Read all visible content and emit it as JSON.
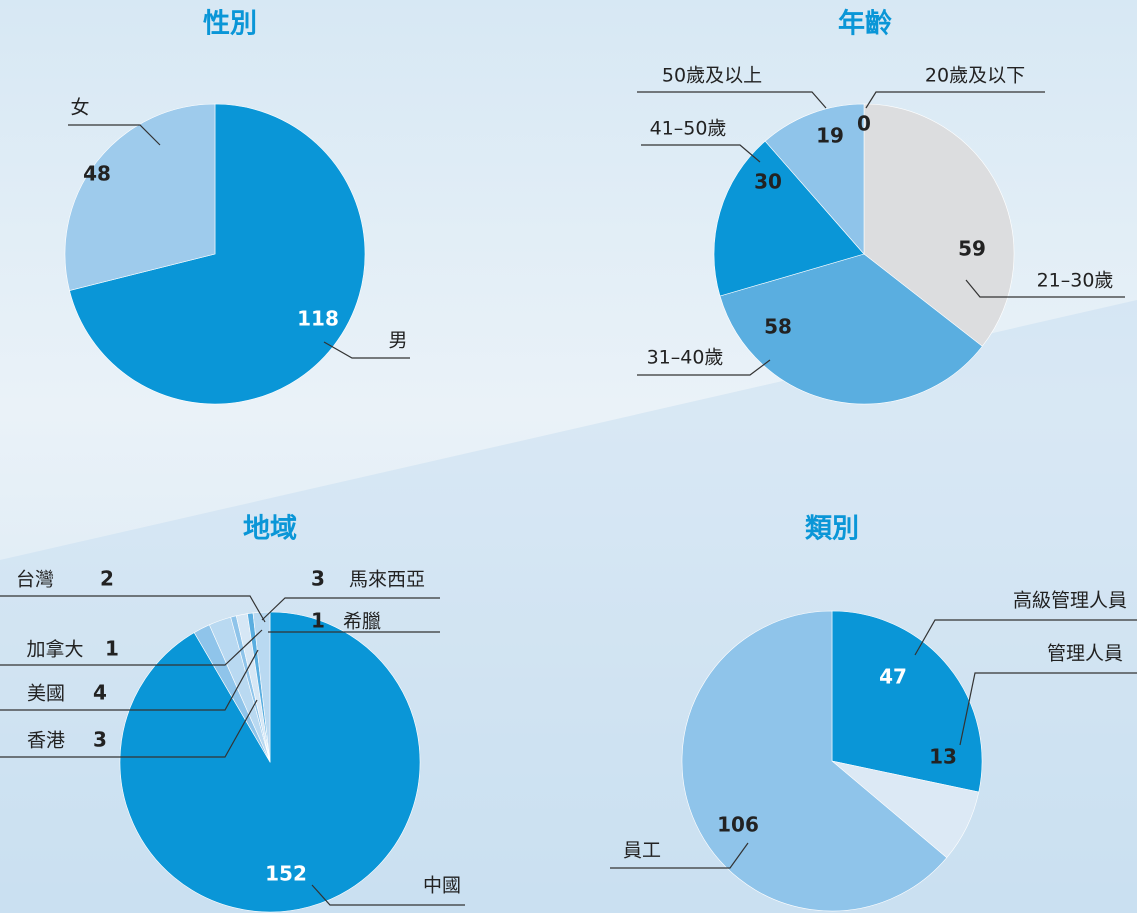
{
  "chart_data": [
    {
      "type": "pie",
      "title": "性別",
      "categories": [
        "男",
        "女"
      ],
      "values": [
        118,
        48
      ],
      "colors": [
        "#0a96d7",
        "#9ecbec"
      ]
    },
    {
      "type": "pie",
      "title": "年齡",
      "categories": [
        "20歲及以下",
        "21–30歲",
        "31–40歲",
        "41–50歲",
        "50歲及以上"
      ],
      "values": [
        0,
        59,
        58,
        30,
        19
      ],
      "colors": [
        "#8fc4ea",
        "#dcdddf",
        "#5aaee0",
        "#0a96d7",
        "#8fc4ea"
      ]
    },
    {
      "type": "pie",
      "title": "地域",
      "categories": [
        "中國",
        "香港",
        "美國",
        "加拿大",
        "台灣",
        "希臘",
        "馬來西亞"
      ],
      "values": [
        152,
        3,
        4,
        1,
        2,
        1,
        3
      ],
      "colors": [
        "#0a96d7",
        "#8fc4ea",
        "#b9d9f1",
        "#8fc4ea",
        "#d6e7f5",
        "#5aaee0",
        "#b9d9f1"
      ]
    },
    {
      "type": "pie",
      "title": "類別",
      "categories": [
        "高級管理人員",
        "管理人員",
        "員工"
      ],
      "values": [
        47,
        13,
        106
      ],
      "colors": [
        "#0a96d7",
        "#dce9f5",
        "#8fc4ea"
      ]
    }
  ]
}
